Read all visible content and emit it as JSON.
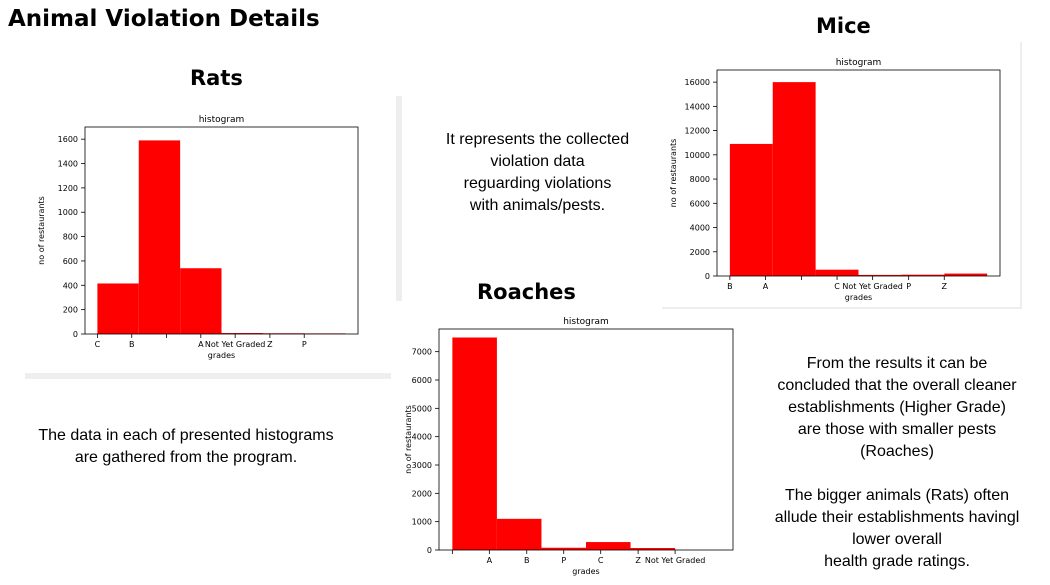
{
  "page": {
    "title": "Animal Violation Details",
    "intro_lines": [
      "It represents the collected",
      "violation data",
      "reguarding violations",
      "with animals/pests."
    ],
    "source_lines": [
      "The data in each of presented histograms",
      "are gathered from the program."
    ],
    "conclusion_lines": [
      "From the results it can be",
      "concluded that the overall cleaner",
      "establishments (Higher Grade)",
      "are those with smaller pests",
      "(Roaches)",
      "",
      "The bigger animals (Rats) often",
      "allude their establishments havingl",
      "lower overall",
      "health grade ratings."
    ]
  },
  "colors": {
    "bar": "#ff0000",
    "background": "#ffffff",
    "axis": "#000000",
    "panel_shadow": "#eeeeee"
  },
  "chart_data": [
    {
      "id": "rats",
      "type": "bar",
      "heading": "Rats",
      "title": "histogram",
      "xlabel": "grades",
      "ylabel": "no of restaurants",
      "ylim": [
        0,
        1700
      ],
      "yticks": [
        0,
        200,
        400,
        600,
        800,
        1000,
        1200,
        1400,
        1600
      ],
      "xrange": [
        -0.3,
        6.3
      ],
      "bins": [
        {
          "x0": 0,
          "x1": 1,
          "value": 415
        },
        {
          "x0": 1,
          "x1": 2,
          "value": 1590
        },
        {
          "x0": 2,
          "x1": 3,
          "value": 540
        },
        {
          "x0": 3,
          "x1": 4,
          "value": 8
        },
        {
          "x0": 4,
          "x1": 5,
          "value": 6
        },
        {
          "x0": 5,
          "x1": 6,
          "value": 5
        }
      ],
      "xticks": [
        {
          "label": "C",
          "pos": 0
        },
        {
          "label": "B",
          "pos": 0.83
        },
        {
          "label": "",
          "pos": 1.67
        },
        {
          "label": "A",
          "pos": 2.5
        },
        {
          "label": "Not Yet Graded",
          "pos": 3.33
        },
        {
          "label": "Z",
          "pos": 4.17
        },
        {
          "label": "P",
          "pos": 5
        }
      ],
      "grid": false,
      "legend": "none"
    },
    {
      "id": "mice",
      "type": "bar",
      "heading": "Mice",
      "title": "histogram",
      "xlabel": "grades",
      "ylabel": "no of restaurants",
      "ylim": [
        0,
        17000
      ],
      "yticks": [
        0,
        2000,
        4000,
        6000,
        8000,
        10000,
        12000,
        14000,
        16000
      ],
      "xrange": [
        -0.3,
        6.3
      ],
      "bins": [
        {
          "x0": 0,
          "x1": 1,
          "value": 10900
        },
        {
          "x0": 1,
          "x1": 2,
          "value": 16000
        },
        {
          "x0": 2,
          "x1": 3,
          "value": 520
        },
        {
          "x0": 3,
          "x1": 4,
          "value": 90
        },
        {
          "x0": 4,
          "x1": 5,
          "value": 110
        },
        {
          "x0": 5,
          "x1": 6,
          "value": 200
        }
      ],
      "xticks": [
        {
          "label": "B",
          "pos": 0
        },
        {
          "label": "A",
          "pos": 0.83
        },
        {
          "label": "",
          "pos": 1.67
        },
        {
          "label": "C",
          "pos": 2.5
        },
        {
          "label": "Not Yet Graded",
          "pos": 3.33
        },
        {
          "label": "P",
          "pos": 4.17
        },
        {
          "label": "Z",
          "pos": 5
        }
      ],
      "grid": false,
      "legend": "none"
    },
    {
      "id": "roaches",
      "type": "bar",
      "heading": "Roaches",
      "title": "histogram",
      "xlabel": "grades",
      "ylabel": "no of restaurants",
      "ylim": [
        0,
        7800
      ],
      "yticks": [
        0,
        1000,
        2000,
        3000,
        4000,
        5000,
        6000,
        7000
      ],
      "xrange": [
        -0.3,
        6.3
      ],
      "bins": [
        {
          "x0": 0,
          "x1": 1,
          "value": 7500
        },
        {
          "x0": 1,
          "x1": 2,
          "value": 1100
        },
        {
          "x0": 2,
          "x1": 3,
          "value": 80
        },
        {
          "x0": 3,
          "x1": 4,
          "value": 280
        },
        {
          "x0": 4,
          "x1": 5,
          "value": 70
        },
        {
          "x0": 5,
          "x1": 6,
          "value": 0
        }
      ],
      "xticks": [
        {
          "label": "",
          "pos": 0
        },
        {
          "label": "A",
          "pos": 0.83
        },
        {
          "label": "B",
          "pos": 1.67
        },
        {
          "label": "P",
          "pos": 2.5
        },
        {
          "label": "C",
          "pos": 3.33
        },
        {
          "label": "Z",
          "pos": 4.17
        },
        {
          "label": "Not Yet Graded",
          "pos": 5
        }
      ],
      "grid": false,
      "legend": "none"
    }
  ]
}
